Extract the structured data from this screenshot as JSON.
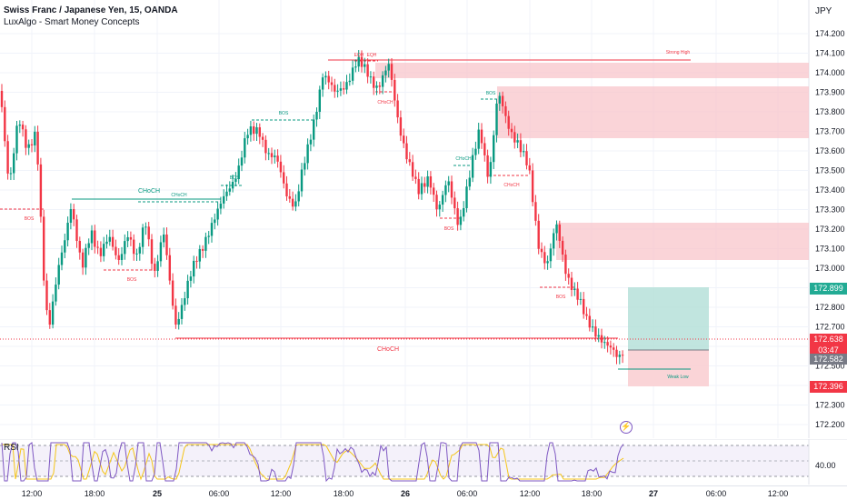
{
  "header": {
    "title": "Swiss Franc / Japanese Yen, 15, OANDA",
    "indicator": "LuxAlgo - Smart Money Concepts"
  },
  "currency_label": "JPY",
  "price_ticks": [
    "174.200",
    "174.100",
    "174.000",
    "173.900",
    "173.800",
    "173.700",
    "173.600",
    "173.500",
    "173.400",
    "173.300",
    "173.200",
    "173.100",
    "173.000",
    "172.900",
    "172.800",
    "172.700",
    "172.600",
    "172.500",
    "172.400",
    "172.300",
    "172.200"
  ],
  "time_ticks": [
    {
      "label": "12:00",
      "bold": false
    },
    {
      "label": "18:00",
      "bold": false
    },
    {
      "label": "25",
      "bold": true
    },
    {
      "label": "06:00",
      "bold": false
    },
    {
      "label": "12:00",
      "bold": false
    },
    {
      "label": "18:00",
      "bold": false
    },
    {
      "label": "26",
      "bold": true
    },
    {
      "label": "06:00",
      "bold": false
    },
    {
      "label": "12:00",
      "bold": false
    },
    {
      "label": "18:00",
      "bold": false
    },
    {
      "label": "27",
      "bold": true
    },
    {
      "label": "06:00",
      "bold": false
    },
    {
      "label": "12:00",
      "bold": false
    }
  ],
  "badges": {
    "take_profit": "172.899",
    "last_price": "172.638",
    "countdown": "03:47",
    "entry": "172.582",
    "stop_loss": "172.396"
  },
  "rsi": {
    "label": "RSI",
    "value": "40.00"
  },
  "annotations": {
    "bos": "BOS",
    "choch": "CHoCH",
    "eqh": "EQH",
    "strong_high": "Strong High",
    "weak_low": "Weak Low"
  },
  "colors": {
    "bull": "#089981",
    "bear": "#f23645",
    "supply_zone": "#f8c5cb",
    "tp_zone": "#b2dfd7",
    "sl_zone": "#f9cfd3",
    "rsi_line": "#7e57c2",
    "rsi_ma": "#f5c518"
  },
  "icons": {
    "replay": "lightning-icon"
  }
}
